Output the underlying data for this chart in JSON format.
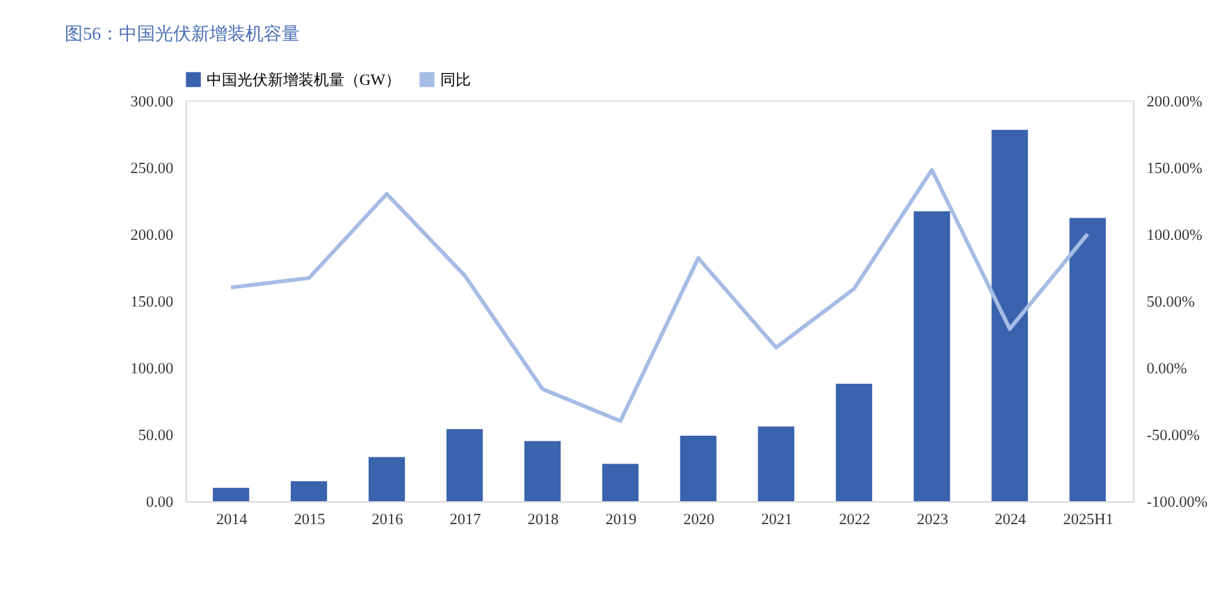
{
  "chart_data": {
    "type": "bar",
    "title": "图56：中国光伏新增装机容量",
    "categories": [
      "2014",
      "2015",
      "2016",
      "2017",
      "2018",
      "2019",
      "2020",
      "2021",
      "2022",
      "2023",
      "2024",
      "2025H1"
    ],
    "series": [
      {
        "name": "中国光伏新增装机量（GW）",
        "type": "bar",
        "color": "#3a63ad",
        "values": [
          10,
          15,
          33,
          54,
          45,
          28,
          49,
          56,
          88,
          217,
          278,
          212
        ]
      },
      {
        "name": "同比",
        "type": "line",
        "axis": "y2",
        "color": "#a6bce5",
        "values": [
          60,
          67,
          130,
          69,
          -16,
          -40,
          82,
          15,
          59,
          148,
          29,
          100
        ]
      }
    ],
    "ylim": [
      0,
      300
    ],
    "yticks": [
      {
        "value": 0,
        "label": "0.00"
      },
      {
        "value": 50,
        "label": "50.00"
      },
      {
        "value": 100,
        "label": "100.00"
      },
      {
        "value": 150,
        "label": "150.00"
      },
      {
        "value": 200,
        "label": "200.00"
      },
      {
        "value": 250,
        "label": "250.00"
      },
      {
        "value": 300,
        "label": "300.00"
      }
    ],
    "y2lim": [
      -100,
      200
    ],
    "y2ticks": [
      {
        "value": -100,
        "label": "-100.00%"
      },
      {
        "value": -50,
        "label": "-50.00%"
      },
      {
        "value": 0,
        "label": "0.00%"
      },
      {
        "value": 50,
        "label": "50.00%"
      },
      {
        "value": 100,
        "label": "100.00%"
      },
      {
        "value": 150,
        "label": "150.00%"
      },
      {
        "value": 200,
        "label": "200.00%"
      }
    ],
    "grid": false,
    "legend": "top",
    "marker": "none",
    "line_style": "solid"
  }
}
